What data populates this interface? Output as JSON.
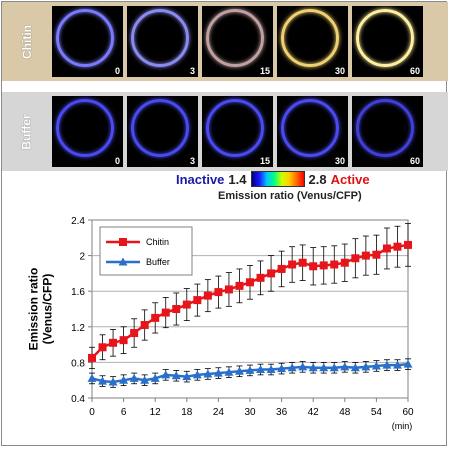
{
  "micrographs": {
    "times": [
      "0",
      "3",
      "15",
      "30",
      "60"
    ],
    "rows": [
      {
        "label": "Chitin",
        "rings": [
          "#7a7aff",
          "#8a8af0",
          "#c0a0a0",
          "#f0d070",
          "#fff0a0"
        ]
      },
      {
        "label": "Buffer",
        "rings": [
          "#4a4af0",
          "#4a4af0",
          "#4a4af0",
          "#4a4af0",
          "#4040d8"
        ]
      }
    ]
  },
  "colorbar": {
    "inactive_label": "Inactive",
    "min_value": "1.4",
    "max_value": "2.8",
    "active_label": "Active",
    "caption": "Emission ratio (Venus/CFP)"
  },
  "chart_data": {
    "type": "line",
    "ylabel": "Emission ratio (Venus/CFP)",
    "xlabel": "(min)",
    "xlim": [
      0,
      60
    ],
    "ylim": [
      0.4,
      2.4
    ],
    "xticks": [
      0,
      6,
      12,
      18,
      24,
      30,
      36,
      42,
      48,
      54,
      60
    ],
    "yticks": [
      0.4,
      0.8,
      1.2,
      1.6,
      2.0,
      2.4
    ],
    "ytick_labels": [
      "0.4",
      "0.8",
      "1.2",
      "1.6",
      "2",
      "2.4"
    ],
    "grid": "horizontal",
    "legend_position": "top-left",
    "x": [
      0,
      2,
      4,
      6,
      8,
      10,
      12,
      14,
      16,
      18,
      20,
      22,
      24,
      26,
      28,
      30,
      32,
      34,
      36,
      38,
      40,
      42,
      44,
      46,
      48,
      50,
      52,
      54,
      56,
      58,
      60
    ],
    "series": [
      {
        "name": "Chitin",
        "color": "#e8141c",
        "marker": "square",
        "values": [
          0.85,
          0.97,
          1.02,
          1.05,
          1.13,
          1.22,
          1.3,
          1.36,
          1.4,
          1.45,
          1.5,
          1.55,
          1.59,
          1.62,
          1.66,
          1.7,
          1.75,
          1.8,
          1.85,
          1.9,
          1.92,
          1.88,
          1.89,
          1.9,
          1.92,
          1.97,
          2.0,
          2.01,
          2.08,
          2.1,
          2.12
        ],
        "errors": [
          0.12,
          0.14,
          0.15,
          0.15,
          0.16,
          0.17,
          0.17,
          0.17,
          0.18,
          0.18,
          0.18,
          0.18,
          0.18,
          0.19,
          0.19,
          0.19,
          0.19,
          0.2,
          0.2,
          0.2,
          0.2,
          0.21,
          0.21,
          0.21,
          0.21,
          0.22,
          0.22,
          0.22,
          0.23,
          0.23,
          0.24
        ]
      },
      {
        "name": "Buffer",
        "color": "#2a6fc9",
        "marker": "triangle",
        "values": [
          0.62,
          0.59,
          0.58,
          0.6,
          0.62,
          0.6,
          0.62,
          0.66,
          0.65,
          0.64,
          0.66,
          0.67,
          0.68,
          0.69,
          0.7,
          0.71,
          0.72,
          0.72,
          0.73,
          0.74,
          0.75,
          0.74,
          0.74,
          0.74,
          0.75,
          0.74,
          0.75,
          0.76,
          0.77,
          0.77,
          0.78
        ]
      }
    ]
  }
}
